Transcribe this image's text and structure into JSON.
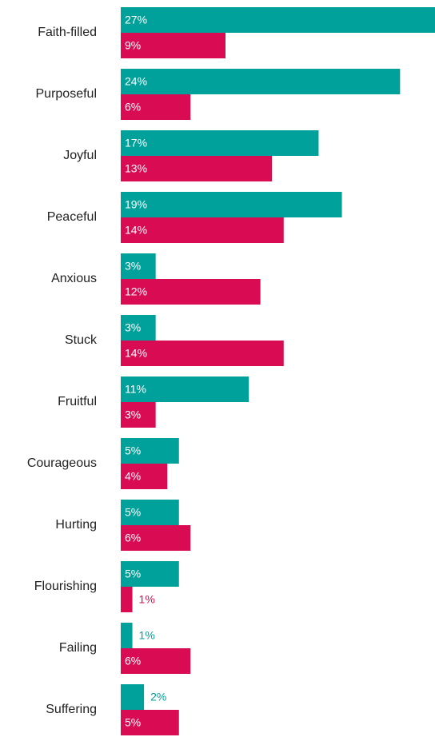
{
  "chart_data": {
    "type": "bar",
    "orientation": "horizontal",
    "categories": [
      "Faith-filled",
      "Purposeful",
      "Joyful",
      "Peaceful",
      "Anxious",
      "Stuck",
      "Fruitful",
      "Courageous",
      "Hurting",
      "Flourishing",
      "Failing",
      "Suffering"
    ],
    "series": [
      {
        "color": "#00a19a",
        "values": [
          27,
          24,
          17,
          19,
          3,
          3,
          11,
          5,
          5,
          5,
          1,
          2
        ],
        "value_labels": [
          "27%",
          "24%",
          "17%",
          "19%",
          "3%",
          "3%",
          "11%",
          "5%",
          "5%",
          "5%",
          "1%",
          "2%"
        ]
      },
      {
        "color": "#d90b52",
        "values": [
          9,
          6,
          13,
          14,
          12,
          14,
          3,
          4,
          6,
          1,
          6,
          5
        ],
        "value_labels": [
          "9%",
          "6%",
          "13%",
          "14%",
          "12%",
          "14%",
          "3%",
          "4%",
          "6%",
          "1%",
          "6%",
          "5%"
        ]
      }
    ]
  }
}
